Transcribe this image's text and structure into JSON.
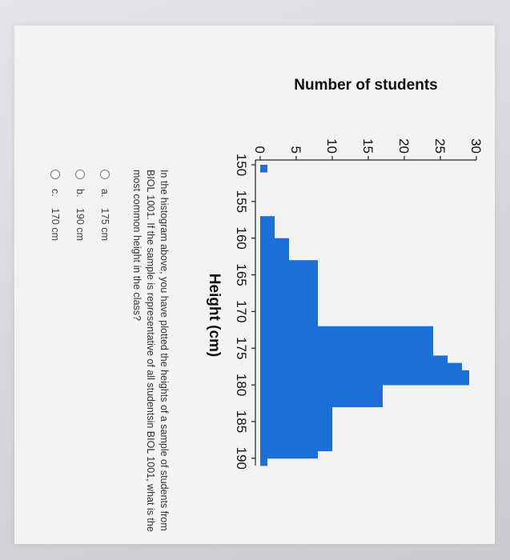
{
  "chart_data": {
    "type": "bar",
    "title": "",
    "xlabel": "Height (cm)",
    "ylabel": "Number of students",
    "x_tick_labels": [
      "150",
      "155",
      "160",
      "165",
      "170",
      "175",
      "180",
      "185",
      "190"
    ],
    "y_tick_labels": [
      "0",
      "5",
      "10",
      "15",
      "20",
      "25",
      "30"
    ],
    "xlim": [
      150,
      191
    ],
    "ylim": [
      0,
      30
    ],
    "bin_width": 1,
    "bins": [
      150,
      151,
      152,
      153,
      154,
      155,
      156,
      157,
      158,
      159,
      160,
      161,
      162,
      163,
      164,
      165,
      166,
      167,
      168,
      169,
      170,
      171,
      172,
      173,
      174,
      175,
      176,
      177,
      178,
      179,
      180,
      181,
      182,
      183,
      184,
      185,
      186,
      187,
      188,
      189,
      190
    ],
    "values": [
      1,
      0,
      0,
      0,
      0,
      0,
      0,
      2,
      2,
      2,
      4,
      4,
      4,
      8,
      8,
      8,
      8,
      8,
      8,
      8,
      8,
      8,
      24,
      24,
      24,
      24,
      26,
      28,
      29,
      29,
      17,
      17,
      17,
      10,
      10,
      10,
      10,
      10,
      10,
      8,
      1
    ],
    "bar_color": "#1d6fd8",
    "grid": false
  },
  "question": {
    "text": "In the histogram above, you have plotted the heights of a sample of students from BIOL 1001. If the sample is representative of all studentsin BIOL 1001, what is the most common height in the class?"
  },
  "options": [
    {
      "letter": "a.",
      "text": "175 cm"
    },
    {
      "letter": "b.",
      "text": "190 cm"
    },
    {
      "letter": "c.",
      "text": "170 cm"
    }
  ]
}
